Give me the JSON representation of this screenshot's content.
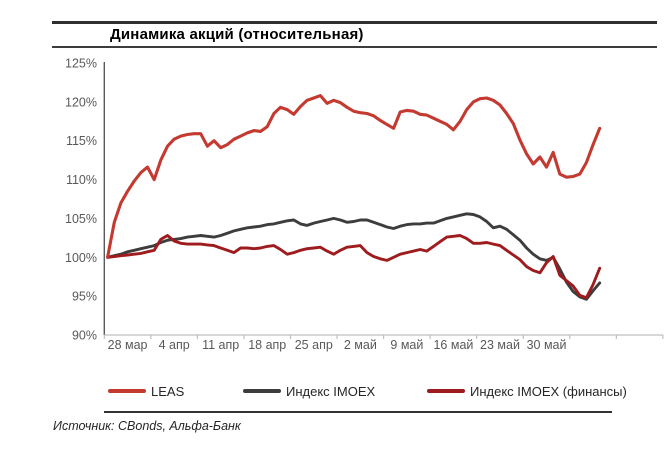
{
  "title": "Динамика акций (относительная)",
  "source": "Источник: CBonds, Альфа-Банк",
  "colors": {
    "leas_red": "#c43a30",
    "imoex_gray": "#3d3d3d",
    "imoex_fin_dark_red": "#9e1b1e",
    "axis_line": "#bfbfbf",
    "y_axis_line": "#595959",
    "tick_text": "#595959"
  },
  "chart_data": {
    "type": "line",
    "title": "Динамика акций (относительная)",
    "grid": false,
    "legend_position": "bottom",
    "y_format": "percent",
    "ylim": [
      90,
      125
    ],
    "y_tick_labels": [
      "125%",
      "120%",
      "115%",
      "110%",
      "105%",
      "100%",
      "95%",
      "90%"
    ],
    "x_tick_labels": [
      "28 мар",
      "4 апр",
      "11 апр",
      "18 апр",
      "25 апр",
      "2 май",
      "9 май",
      "16 май",
      "23 май",
      "30 май"
    ],
    "x_note": "daily points, day 0 = 28 мар",
    "series": [
      {
        "name": "LEAS",
        "color": "#c43a30",
        "values": [
          100,
          104.5,
          107,
          108.5,
          109.8,
          110.9,
          111.6,
          110,
          112.5,
          114.3,
          115.2,
          115.6,
          115.8,
          115.9,
          115.9,
          114.3,
          115,
          114.1,
          114.5,
          115.2,
          115.6,
          116,
          116.3,
          116.2,
          116.8,
          118.5,
          119.3,
          119,
          118.4,
          119.4,
          120.2,
          120.5,
          120.8,
          119.8,
          120.2,
          119.9,
          119.3,
          118.8,
          118.6,
          118.5,
          118.2,
          117.6,
          117.1,
          116.6,
          118.7,
          118.9,
          118.8,
          118.4,
          118.3,
          117.9,
          117.5,
          117.1,
          116.4,
          117.5,
          119,
          120,
          120.4,
          120.5,
          120.2,
          119.6,
          118.5,
          117.2,
          115.1,
          113.3,
          112,
          112.9,
          111.6,
          113.5,
          110.7,
          110.3,
          110.4,
          110.7,
          112.2,
          114.5,
          116.6
        ]
      },
      {
        "name": "Индекс IMOEX",
        "color": "#3d3d3d",
        "values": [
          100,
          100.2,
          100.4,
          100.7,
          100.9,
          101.1,
          101.3,
          101.5,
          101.9,
          102.2,
          102.3,
          102.4,
          102.6,
          102.7,
          102.8,
          102.7,
          102.6,
          102.8,
          103.1,
          103.4,
          103.6,
          103.8,
          103.9,
          104,
          104.2,
          104.3,
          104.5,
          104.7,
          104.8,
          104.3,
          104.1,
          104.4,
          104.6,
          104.8,
          105,
          104.8,
          104.5,
          104.6,
          104.8,
          104.8,
          104.5,
          104.2,
          103.9,
          103.7,
          104,
          104.2,
          104.3,
          104.3,
          104.4,
          104.4,
          104.7,
          105,
          105.2,
          105.4,
          105.6,
          105.5,
          105.2,
          104.6,
          103.8,
          104,
          103.6,
          102.9,
          102.2,
          101.2,
          100.4,
          99.8,
          99.6,
          100,
          98.5,
          96.8,
          95.6,
          94.9,
          94.6,
          95.7,
          96.7
        ]
      },
      {
        "name": "Индекс IMOEX (финансы)",
        "color": "#9e1b1e",
        "values": [
          100,
          100.1,
          100.2,
          100.3,
          100.4,
          100.5,
          100.7,
          100.9,
          102.3,
          102.8,
          102.1,
          101.8,
          101.7,
          101.7,
          101.7,
          101.6,
          101.5,
          101.2,
          100.9,
          100.6,
          101.2,
          101.2,
          101.1,
          101.2,
          101.4,
          101.5,
          101,
          100.4,
          100.6,
          100.9,
          101.1,
          101.2,
          101.3,
          100.8,
          100.4,
          100.9,
          101.3,
          101.4,
          101.5,
          100.6,
          100.1,
          99.8,
          99.6,
          100,
          100.4,
          100.6,
          100.8,
          101,
          100.8,
          101.4,
          102,
          102.6,
          102.7,
          102.8,
          102.4,
          101.8,
          101.8,
          101.9,
          101.7,
          101.5,
          100.9,
          100.3,
          99.7,
          98.8,
          98.3,
          98,
          99.3,
          100.1,
          97.7,
          97,
          96.3,
          95.1,
          94.8,
          96.5,
          98.6
        ]
      }
    ]
  }
}
